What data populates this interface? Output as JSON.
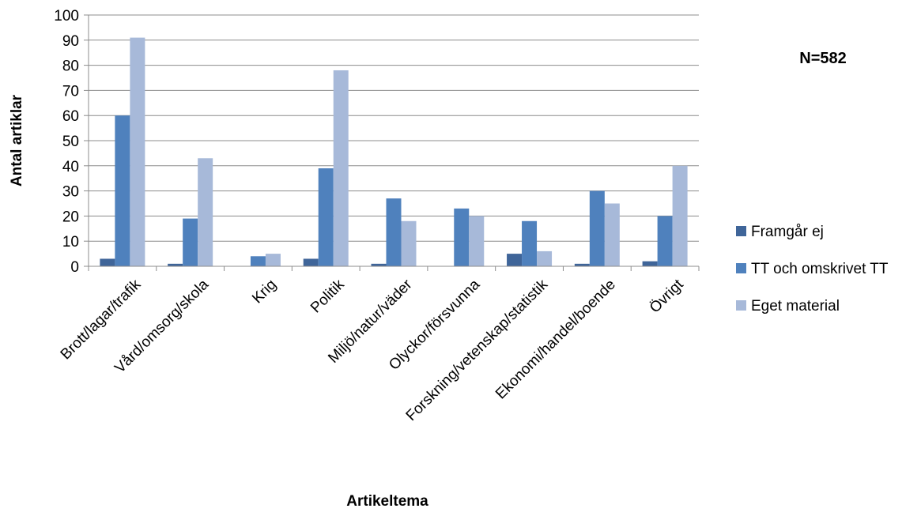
{
  "chart_data": {
    "type": "bar",
    "xlabel": "Artikeltema",
    "ylabel": "Antal artiklar",
    "annotation": "N=582",
    "ylim": [
      0,
      100
    ],
    "yticks": [
      0,
      10,
      20,
      30,
      40,
      50,
      60,
      70,
      80,
      90,
      100
    ],
    "grid": true,
    "legend_position": "right",
    "categories": [
      "Brott/lagar/trafik",
      "Vård/omsorg/skola",
      "Krig",
      "Politik",
      "Miljö/natur/väder",
      "Olyckor/försvunna",
      "Forskning/vetenskap/statistik",
      "Ekonomi/handel/boende",
      "Övrigt"
    ],
    "series": [
      {
        "name": "Framgår ej",
        "color": "#3f6599",
        "values": [
          3,
          1,
          0,
          3,
          1,
          0,
          5,
          1,
          2
        ]
      },
      {
        "name": "TT och omskrivet TT",
        "color": "#4f81bd",
        "values": [
          60,
          19,
          4,
          39,
          27,
          23,
          18,
          30,
          20
        ]
      },
      {
        "name": "Eget material",
        "color": "#a7b9d9",
        "values": [
          91,
          43,
          5,
          78,
          18,
          20,
          6,
          25,
          40
        ]
      }
    ]
  }
}
